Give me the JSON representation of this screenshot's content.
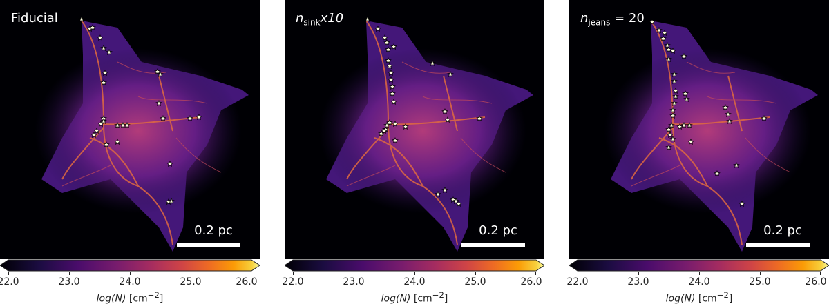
{
  "panels": [
    {
      "label_main": "Fiducial",
      "label_sub": "",
      "label_tail": ""
    },
    {
      "label_main": "n",
      "label_sub": "sink",
      "label_tail": "x10"
    },
    {
      "label_main": "n",
      "label_sub": "jeans",
      "label_tail": " = 20"
    }
  ],
  "scalebar": {
    "label": "0.2 pc"
  },
  "colorbar": {
    "ticks": [
      "22.0",
      "23.0",
      "24.0",
      "25.0",
      "26.0"
    ],
    "label_func": "log(N)",
    "label_unit": "[cm",
    "label_exp": "−2",
    "label_close": "]",
    "colormap": "inferno"
  },
  "colors": {
    "background": "#000004",
    "filament": "#e0603a",
    "star_fill": "#ffffe0",
    "star_edge": "#000000"
  }
}
